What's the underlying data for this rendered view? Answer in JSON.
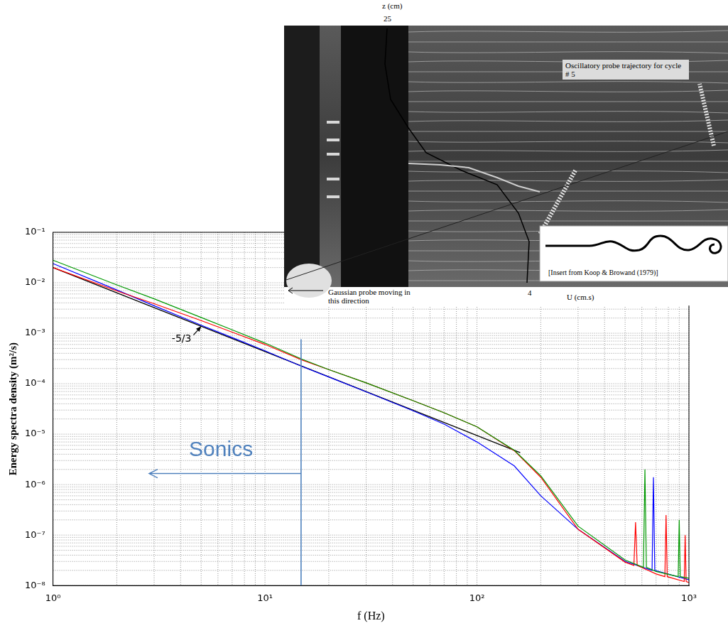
{
  "chart_data": {
    "type": "line",
    "x_label": "f (Hz)",
    "y_label": "Energy spectra density (m²/s)",
    "log": true,
    "grid": true,
    "xlim": [
      1,
      1000
    ],
    "xticks": [
      {
        "value": 1,
        "label": "10⁰"
      },
      {
        "value": 10,
        "label": "10¹"
      },
      {
        "value": 100,
        "label": "10²"
      },
      {
        "value": 1000,
        "label": "10³"
      }
    ],
    "ylim": [
      1e-08,
      0.1
    ],
    "yticks": [
      {
        "value": 1e-08,
        "label": "10⁻⁸"
      },
      {
        "value": 1e-07,
        "label": "10⁻⁷"
      },
      {
        "value": 1e-06,
        "label": "10⁻⁶"
      },
      {
        "value": 1e-05,
        "label": "10⁻⁵"
      },
      {
        "value": 0.0001,
        "label": "10⁻⁴"
      },
      {
        "value": 0.001,
        "label": "10⁻³"
      },
      {
        "value": 0.01,
        "label": "10⁻²"
      },
      {
        "value": 0.1,
        "label": "10⁻¹"
      }
    ],
    "series": [
      {
        "color": "#009900",
        "x": [
          1,
          2,
          3,
          5,
          7,
          10,
          15,
          20,
          30,
          50,
          70,
          100,
          150,
          200,
          300,
          500,
          610,
          620,
          630,
          700,
          890,
          900,
          910,
          1000
        ],
        "values": [
          0.028,
          0.0091,
          0.0048,
          0.00205,
          0.00117,
          0.00064,
          0.000305,
          0.00019,
          0.000104,
          4.6e-05,
          2.66e-05,
          1.4e-05,
          4.8e-06,
          1.5e-06,
          1.5e-07,
          3.2e-08,
          2.3e-08,
          2e-06,
          2.3e-08,
          1.9e-08,
          1.5e-08,
          2e-07,
          1.5e-08,
          1.4e-08
        ]
      },
      {
        "color": "#ff0000",
        "x": [
          1,
          2,
          3,
          5,
          7,
          10,
          15,
          20,
          30,
          50,
          70,
          100,
          150,
          200,
          300,
          500,
          550,
          560,
          570,
          700,
          770,
          780,
          790,
          950,
          960,
          970,
          1000
        ],
        "values": [
          0.02,
          0.0069,
          0.00385,
          0.00178,
          0.00105,
          0.0006,
          0.000294,
          0.00019,
          0.000104,
          4.6e-05,
          2.66e-05,
          1.4e-05,
          4.7e-06,
          1.4e-06,
          1.3e-07,
          2.9e-08,
          2.5e-08,
          1.8e-07,
          2.5e-08,
          1.7e-08,
          1.5e-08,
          2.5e-07,
          1.5e-08,
          1.2e-08,
          1e-07,
          1.2e-08,
          1.15e-08
        ]
      },
      {
        "color": "#0000ff",
        "x": [
          1,
          2,
          3,
          5,
          7,
          10,
          15,
          20,
          30,
          50,
          70,
          100,
          150,
          200,
          300,
          500,
          670,
          680,
          690,
          1000
        ],
        "values": [
          0.024,
          0.0072,
          0.0035,
          0.00144,
          0.00082,
          0.00045,
          0.000218,
          0.000136,
          6.9e-05,
          2.9e-05,
          1.58e-05,
          7e-06,
          2.35e-06,
          6e-07,
          1.3e-07,
          3e-08,
          2e-08,
          1.4e-06,
          2e-08,
          1.3e-08
        ]
      },
      {
        "color": "#000000",
        "x": [
          1,
          160
        ],
        "values": [
          0.02,
          4.3e-06
        ]
      }
    ],
    "vline": {
      "x": 14.8,
      "y": [
        0.00076,
        1e-08
      ],
      "color": "#4f81bd"
    },
    "arrow": {
      "from_x": 14.8,
      "to_x": 2.84,
      "y": 1.66e-06,
      "color": "#4f81bd"
    },
    "annotations": [
      {
        "text": "-5/3",
        "x": 4.6,
        "y": 0.00092,
        "arrow_to": {
          "x": 5.0,
          "y": 0.00137
        },
        "color": "#000000"
      },
      {
        "text": "Sonics",
        "x": 6.2,
        "y": 4.8e-06,
        "color": "#4f81bd"
      }
    ]
  },
  "inset_photo": {
    "z_label": "z (cm)",
    "z_tick": 25,
    "trajectory_label": "Oscillatory probe trajectory for cycle # 5",
    "probe_label": "Gaussian probe moving in this direction",
    "u_label": "U (cm.s)",
    "u_tick": 4,
    "insert_label": "[Insert from Koop & Browand (1979)]"
  }
}
